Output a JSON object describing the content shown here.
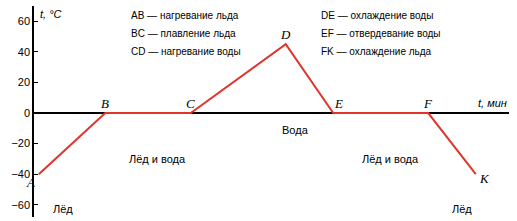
{
  "chart_data": {
    "type": "line",
    "x": [
      1,
      15,
      33,
      53,
      63,
      83,
      93
    ],
    "values": [
      -40,
      0,
      0,
      45,
      0,
      0,
      -40
    ],
    "point_labels": [
      "A",
      "B",
      "C",
      "D",
      "E",
      "F",
      "K"
    ],
    "color": "#e0352b",
    "xlabel": "t, мин",
    "ylabel": "t, °C",
    "xlim": [
      0,
      100
    ],
    "xticks": [],
    "ylim": [
      -68,
      70
    ],
    "yticks": [
      -60,
      -40,
      -20,
      0,
      20,
      40,
      60
    ],
    "tick_labels": "y",
    "grid": false,
    "legend_text": [
      [
        "AB — нагревание льда",
        "BC — плавление льда",
        "CD — нагревание воды"
      ],
      [
        "DE — охлаждение воды",
        "EF — отвердевание воды",
        "FK — охлаждение льда"
      ]
    ],
    "annotations": [
      {
        "text": "Лёд",
        "x": 6,
        "y": -63
      },
      {
        "text": "Лёд и вода",
        "x": 26,
        "y": -30
      },
      {
        "text": "Вода",
        "x": 55,
        "y": -11
      },
      {
        "text": "Лёд и вода",
        "x": 75,
        "y": -30
      },
      {
        "text": "Лёд",
        "x": 90,
        "y": -63
      }
    ]
  }
}
